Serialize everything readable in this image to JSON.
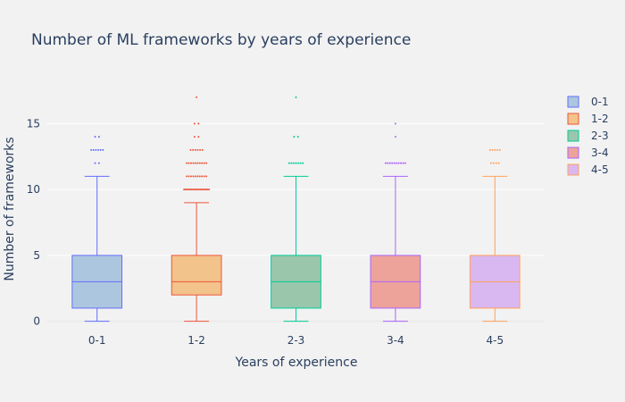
{
  "chart_data": {
    "type": "box",
    "title": "Number of ML frameworks by years of experience",
    "xlabel": "Years of experience",
    "ylabel": "Number of frameworks",
    "ylim": [
      -0.7,
      17.6
    ],
    "yticks": [
      0,
      5,
      10,
      15
    ],
    "grid": true,
    "legend_position": "right",
    "categories": [
      "0-1",
      "1-2",
      "2-3",
      "3-4",
      "4-5"
    ],
    "series": [
      {
        "name": "0-1",
        "category": "0-1",
        "color": "#636efa",
        "fill": "#adc6e0",
        "min": 0,
        "q1": 1,
        "median": 3,
        "q3": 5,
        "max": 11,
        "outliers": [
          12,
          12,
          13,
          13,
          13,
          13,
          13,
          13,
          14,
          14
        ]
      },
      {
        "name": "1-2",
        "category": "1-2",
        "color": "#ef553b",
        "fill": "#f2c38a",
        "min": 0,
        "q1": 2,
        "median": 3,
        "q3": 5,
        "max": 9,
        "outliers": [
          10,
          10,
          10,
          10,
          10,
          10,
          10,
          10,
          10,
          10,
          10,
          10,
          10,
          10,
          10,
          10,
          10,
          10,
          11,
          11,
          11,
          11,
          11,
          11,
          11,
          11,
          11,
          11,
          12,
          12,
          12,
          12,
          12,
          12,
          12,
          12,
          12,
          12,
          13,
          13,
          13,
          13,
          13,
          13,
          14,
          14,
          15,
          15,
          17
        ]
      },
      {
        "name": "2-3",
        "category": "2-3",
        "color": "#00cc96",
        "fill": "#9ac6ab",
        "min": 0,
        "q1": 1,
        "median": 3,
        "q3": 5,
        "max": 11,
        "outliers": [
          12,
          12,
          12,
          12,
          12,
          12,
          12,
          14,
          14,
          17
        ]
      },
      {
        "name": "3-4",
        "category": "3-4",
        "color": "#ab63fa",
        "fill": "#eda39a",
        "min": 0,
        "q1": 1,
        "median": 3,
        "q3": 5,
        "max": 11,
        "outliers": [
          12,
          12,
          12,
          12,
          12,
          12,
          12,
          12,
          12,
          12,
          14,
          15
        ]
      },
      {
        "name": "4-5",
        "category": "4-5",
        "color": "#ffa15a",
        "fill": "#d9b8f1",
        "min": 0,
        "q1": 1,
        "median": 3,
        "q3": 5,
        "max": 11,
        "outliers": [
          12,
          12,
          12,
          12,
          13,
          13,
          13,
          13,
          13
        ]
      }
    ]
  }
}
